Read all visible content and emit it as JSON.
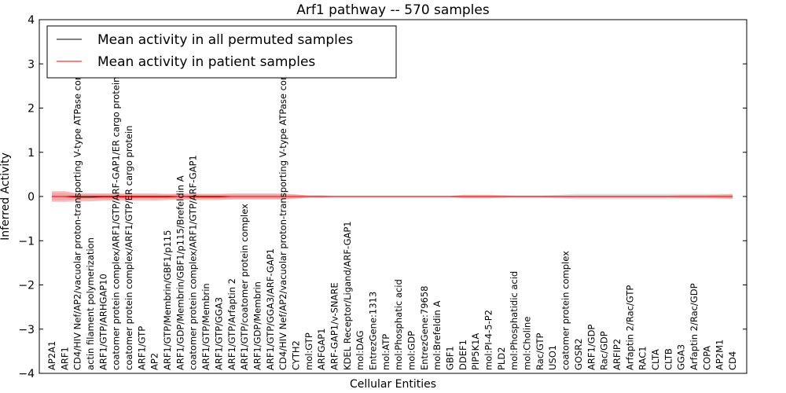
{
  "chart_data": {
    "type": "line",
    "title": "Arf1 pathway -- 570 samples",
    "xlabel": "Cellular Entities",
    "ylabel": "Inferred Activity",
    "ylim": [
      -4,
      4
    ],
    "yticks": [
      -4,
      -3,
      -2,
      -1,
      0,
      1,
      2,
      3,
      4
    ],
    "ytick_labels": [
      "−4",
      "−3",
      "−2",
      "−1",
      "0",
      "1",
      "2",
      "3",
      "4"
    ],
    "grid": false,
    "legend_position": "top-left",
    "categories": [
      "AP2A1",
      "ARF1",
      "CD4/HIV Nef/AP2/vacuolar proton-transporting V-type ATPase complex",
      "actin filament polymerization",
      "ARF1/GTP/ARHGAP10",
      "coatomer protein complex/ARF1/GTP/ARF-GAP1/ER cargo protein",
      "coatomer protein complex/ARF1/GTP/ER cargo protein",
      "ARF1/GTP",
      "AP2",
      "ARF1/GTP/Membrin/GBF1/p115",
      "ARF1/GDP/Membrin/GBF1/p115/Brefeldin A",
      "coatomer protein complex/ARF1/GTP/ARF-GAP1",
      "ARF1/GTP/Membrin",
      "ARF1/GTP/GGA3",
      "ARF1/GTP/Arfaptin 2",
      "ARF1/GTP/coatomer protein complex",
      "ARF1/GDP/Membrin",
      "ARF1/GTP/GGA3/ARF-GAP1",
      "CD4/HIV Nef/AP2/vacuolar proton-transporting V-type ATPase complex",
      "CYTH2",
      "mol:GTP",
      "ARFGAP1",
      "ARF-GAP1/v-SNARE",
      "KDEL Receptor/Ligand/ARF-GAP1",
      "mol:DAG",
      "EntrezGene:1313",
      "mol:ATP",
      "mol:Phosphatic acid",
      "mol:GDP",
      "EntrezGene:79658",
      "mol:Brefeldin A",
      "GBF1",
      "DDEF1",
      "PIP5K1A",
      "mol:PI-4-5-P2",
      "PLD2",
      "mol:Phosphatidic acid",
      "mol:Choline",
      "Rac/GTP",
      "USO1",
      "coatomer protein complex",
      "GOSR2",
      "ARF1/GDP",
      "Rac/GDP",
      "ARFIP2",
      "Arfaptin 2/Rac/GTP",
      "RAC1",
      "CLTA",
      "CLTB",
      "GGA3",
      "Arfaptin 2/Rac/GDP",
      "COPA",
      "AP2M1",
      "CD4"
    ],
    "series": [
      {
        "name": "Mean activity in all permuted samples",
        "color": "#000000",
        "values": [
          0,
          0,
          0,
          0,
          0,
          0,
          0,
          0,
          0,
          0,
          0,
          0,
          0,
          0,
          0,
          0,
          0,
          0,
          0,
          0,
          0,
          0,
          0,
          0,
          0,
          0,
          0,
          0,
          0,
          0,
          0,
          0,
          0,
          0,
          0,
          0,
          0,
          0,
          0,
          0,
          0,
          0,
          0,
          0,
          0,
          0,
          0,
          0,
          0,
          0,
          0,
          0,
          0,
          0
        ],
        "band": [
          0.08,
          0.08,
          0.06,
          0.06,
          0.06,
          0.06,
          0.05,
          0.05,
          0.05,
          0.05,
          0.05,
          0.05,
          0.05,
          0.05,
          0.05,
          0.05,
          0.05,
          0.05,
          0.05,
          0.04,
          0.03,
          0.03,
          0.02,
          0.02,
          0.02,
          0.02,
          0.02,
          0.02,
          0.02,
          0.02,
          0.02,
          0.02,
          0.02,
          0.02,
          0.02,
          0.02,
          0.02,
          0.02,
          0.02,
          0.03,
          0.05,
          0.06,
          0.06,
          0.06,
          0.06,
          0.06,
          0.06,
          0.06,
          0.06,
          0.06,
          0.06,
          0.06,
          0.06,
          0.06
        ],
        "band_color": "#c8c8c8"
      },
      {
        "name": "Mean activity in patient samples",
        "color": "#ff0000",
        "values": [
          0.0,
          0.0,
          -0.02,
          -0.02,
          -0.01,
          -0.01,
          -0.01,
          -0.01,
          -0.01,
          -0.01,
          0.0,
          -0.01,
          -0.01,
          -0.01,
          0.0,
          0.0,
          0.0,
          0.0,
          0.0,
          0.0,
          0.0,
          0.0,
          0.0,
          0.0,
          0.0,
          0.0,
          0.0,
          0.0,
          0.0,
          0.0,
          0.0,
          0.0,
          0.0,
          0.0,
          0.0,
          0.0,
          0.0,
          0.0,
          0.0,
          0.0,
          0.0,
          0.0,
          0.0,
          0.0,
          0.0,
          0.0,
          0.0,
          0.0,
          0.0,
          0.0,
          0.0,
          0.0,
          0.0,
          0.0
        ],
        "band": [
          0.12,
          0.12,
          0.09,
          0.09,
          0.08,
          0.08,
          0.08,
          0.08,
          0.08,
          0.07,
          0.07,
          0.07,
          0.07,
          0.07,
          0.07,
          0.07,
          0.07,
          0.07,
          0.07,
          0.05,
          0.02,
          0.02,
          0.01,
          0.01,
          0.01,
          0.01,
          0.01,
          0.01,
          0.01,
          0.01,
          0.01,
          0.01,
          0.04,
          0.04,
          0.04,
          0.03,
          0.02,
          0.02,
          0.02,
          0.02,
          0.02,
          0.02,
          0.02,
          0.02,
          0.02,
          0.02,
          0.02,
          0.02,
          0.02,
          0.03,
          0.03,
          0.03,
          0.04,
          0.05
        ],
        "band_color": "#ff6464"
      }
    ]
  }
}
